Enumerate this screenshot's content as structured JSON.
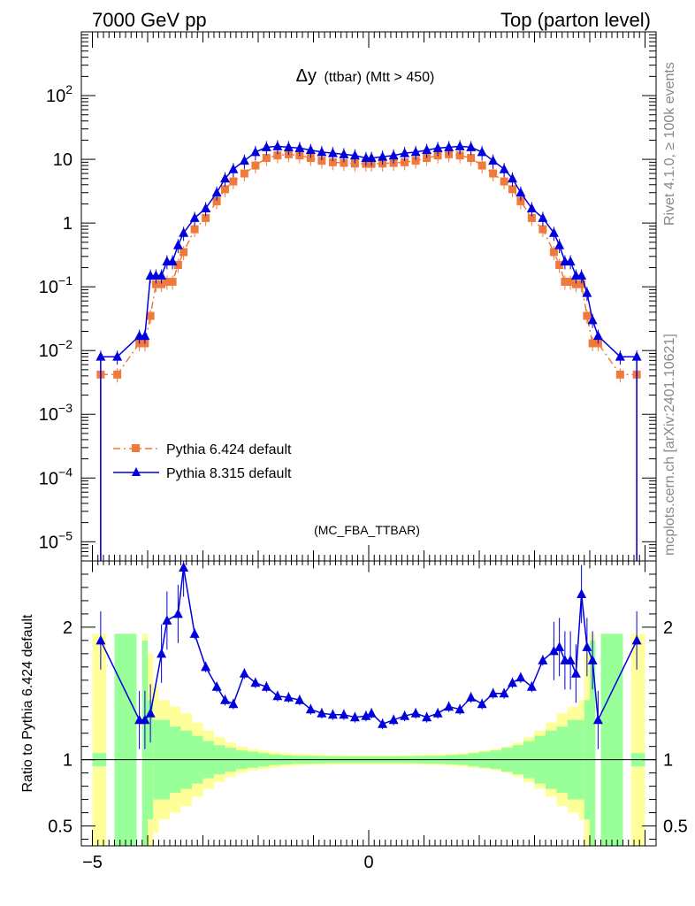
{
  "header": {
    "left": "7000 GeV pp",
    "right": "Top (parton level)"
  },
  "side_text": {
    "top": "Rivet 4.1.0, ≥ 100k events",
    "bottom": "mcplots.cern.ch [arXiv:2401.10621]"
  },
  "colors": {
    "p6": "#f07a3c",
    "p8": "#0000dd",
    "band_green": "#99ff99",
    "band_yellow": "#ffff99"
  },
  "chart_data": [
    {
      "type": "line",
      "title": "Δy (ttbar) (Mtt > 450)",
      "title_main": "Δy",
      "title_rest": "(ttbar) (Mtt > 450)",
      "analysis": "(MC_FBA_TTBAR)",
      "yscale": "log",
      "xlim": [
        -5.2,
        5.2
      ],
      "ylim": [
        5e-06,
        1000
      ],
      "yticks": [
        {
          "label": "10",
          "sup": "2",
          "value": 100
        },
        {
          "label": "10",
          "sup": "",
          "value": 10
        },
        {
          "label": "1",
          "sup": "",
          "value": 1
        },
        {
          "label": "10",
          "sup": "−1",
          "value": 0.1
        },
        {
          "label": "10",
          "sup": "−2",
          "value": 0.01
        },
        {
          "label": "10",
          "sup": "−3",
          "value": 0.001
        },
        {
          "label": "10",
          "sup": "−4",
          "value": 0.0001
        },
        {
          "label": "10",
          "sup": "−5",
          "value": 1e-05
        }
      ],
      "x": [
        -4.85,
        -4.55,
        -4.15,
        -4.05,
        -3.95,
        -3.85,
        -3.75,
        -3.65,
        -3.55,
        -3.45,
        -3.35,
        -3.15,
        -2.95,
        -2.75,
        -2.6,
        -2.45,
        -2.25,
        -2.05,
        -1.85,
        -1.65,
        -1.45,
        -1.25,
        -1.05,
        -0.85,
        -0.65,
        -0.45,
        -0.25,
        -0.05,
        0.05,
        0.25,
        0.45,
        0.65,
        0.85,
        1.05,
        1.25,
        1.45,
        1.65,
        1.85,
        2.05,
        2.25,
        2.45,
        2.6,
        2.75,
        2.95,
        3.15,
        3.35,
        3.45,
        3.55,
        3.65,
        3.75,
        3.85,
        3.95,
        4.05,
        4.15,
        4.55,
        4.85
      ],
      "series": [
        {
          "name": "Pythia 6.424 default",
          "color": "#f07a3c",
          "marker": "square",
          "dashed": true,
          "values": [
            0.0042,
            0.0042,
            0.013,
            0.013,
            0.035,
            0.11,
            0.11,
            0.12,
            0.12,
            0.22,
            0.35,
            0.8,
            1.2,
            2.2,
            3.4,
            4.5,
            6,
            8,
            10.5,
            11.5,
            12,
            11.5,
            10.5,
            9.5,
            9,
            8.8,
            8.6,
            8.5,
            8.5,
            8.6,
            8.8,
            9,
            9.5,
            10.5,
            11.5,
            12,
            11.5,
            10.5,
            8,
            6,
            4.5,
            3.4,
            2.2,
            1.2,
            0.8,
            0.35,
            0.22,
            0.12,
            0.12,
            0.11,
            0.11,
            0.035,
            0.013,
            0.013,
            0.0042,
            0.0042
          ]
        },
        {
          "name": "Pythia 8.315 default",
          "color": "#0000dd",
          "marker": "triangle",
          "dashed": false,
          "values": [
            0.008,
            0.008,
            0.017,
            0.017,
            0.15,
            0.15,
            0.15,
            0.25,
            0.25,
            0.45,
            0.7,
            1.2,
            1.7,
            3,
            5,
            7,
            9.5,
            13,
            15.5,
            16,
            15.5,
            15,
            14,
            13,
            12.5,
            12,
            11.5,
            10.5,
            10.5,
            11,
            11.5,
            12.5,
            13,
            14,
            15,
            15.5,
            16,
            15.5,
            13,
            9.5,
            7,
            5,
            3,
            1.7,
            1.2,
            0.7,
            0.45,
            0.25,
            0.25,
            0.15,
            0.15,
            0.08,
            0.03,
            0.017,
            0.008,
            0.008
          ]
        }
      ]
    },
    {
      "type": "line",
      "ylabel": "Ratio to Pythia 6.424 default",
      "xlim": [
        -5.2,
        5.2
      ],
      "ylim": [
        0.35,
        2.5
      ],
      "xticks": [
        {
          "label": "−5",
          "value": -5
        },
        {
          "label": "0",
          "value": 0
        }
      ],
      "yticks": [
        {
          "label": "2",
          "value": 2
        },
        {
          "label": "1",
          "value": 1
        },
        {
          "label": "0.5",
          "value": 0.5
        }
      ],
      "x": [
        -4.85,
        -4.15,
        -4.05,
        -3.95,
        -3.75,
        -3.65,
        -3.45,
        -3.35,
        -3.15,
        -2.95,
        -2.75,
        -2.6,
        -2.45,
        -2.25,
        -2.05,
        -1.85,
        -1.65,
        -1.45,
        -1.25,
        -1.05,
        -0.85,
        -0.65,
        -0.45,
        -0.25,
        -0.05,
        0.05,
        0.25,
        0.45,
        0.65,
        0.85,
        1.05,
        1.25,
        1.45,
        1.65,
        1.85,
        2.05,
        2.25,
        2.45,
        2.6,
        2.75,
        2.95,
        3.15,
        3.35,
        3.45,
        3.55,
        3.65,
        3.75,
        3.85,
        3.95,
        4.05,
        4.15,
        4.85
      ],
      "values": [
        1.9,
        1.3,
        1.3,
        1.35,
        1.8,
        2.05,
        2.1,
        2.45,
        1.95,
        1.7,
        1.55,
        1.45,
        1.42,
        1.65,
        1.58,
        1.55,
        1.48,
        1.47,
        1.45,
        1.38,
        1.35,
        1.34,
        1.34,
        1.32,
        1.33,
        1.35,
        1.27,
        1.3,
        1.33,
        1.35,
        1.32,
        1.35,
        1.4,
        1.38,
        1.47,
        1.42,
        1.5,
        1.5,
        1.58,
        1.62,
        1.55,
        1.75,
        1.82,
        1.85,
        1.75,
        1.75,
        1.65,
        2.25,
        1.85,
        1.75,
        1.3,
        1.9
      ],
      "band_x": [
        -5.0,
        -4.95,
        -4.75,
        -4.6,
        -4.4,
        -4.2,
        -4.1,
        -4.0,
        -3.9,
        -3.8,
        -3.6,
        -3.4,
        -3.2,
        -3.0,
        -2.8,
        -2.6,
        -2.4,
        -2.2,
        -2.0,
        -1.8,
        -1.6,
        -1.4,
        -1.2,
        -1.0,
        -0.8,
        -0.6,
        -0.4,
        -0.2,
        0.0,
        0.2,
        0.4,
        0.6,
        0.8,
        1.0,
        1.2,
        1.4,
        1.6,
        1.8,
        2.0,
        2.2,
        2.4,
        2.6,
        2.8,
        3.0,
        3.2,
        3.4,
        3.6,
        3.8,
        3.9,
        4.0,
        4.1,
        4.2,
        4.4,
        4.6,
        4.75,
        4.95,
        5.0
      ],
      "band_green": [
        0.05,
        0.05,
        0.0,
        0.95,
        0.95,
        0.0,
        0.9,
        0.45,
        0.3,
        0.3,
        0.25,
        0.22,
        0.18,
        0.14,
        0.11,
        0.09,
        0.07,
        0.06,
        0.05,
        0.04,
        0.035,
        0.03,
        0.03,
        0.028,
        0.026,
        0.025,
        0.025,
        0.025,
        0.025,
        0.025,
        0.025,
        0.026,
        0.028,
        0.03,
        0.03,
        0.035,
        0.04,
        0.05,
        0.06,
        0.07,
        0.09,
        0.11,
        0.14,
        0.18,
        0.22,
        0.25,
        0.3,
        0.3,
        0.45,
        0.9,
        0.0,
        0.95,
        0.95,
        0.0,
        0.05,
        0.05,
        0.05
      ],
      "band_yellow": [
        0.95,
        0.95,
        0.0,
        0.95,
        0.95,
        0.0,
        0.95,
        0.8,
        0.55,
        0.45,
        0.4,
        0.35,
        0.28,
        0.22,
        0.17,
        0.13,
        0.1,
        0.08,
        0.07,
        0.06,
        0.05,
        0.045,
        0.04,
        0.04,
        0.038,
        0.036,
        0.035,
        0.035,
        0.035,
        0.035,
        0.035,
        0.036,
        0.038,
        0.04,
        0.04,
        0.045,
        0.05,
        0.06,
        0.07,
        0.08,
        0.1,
        0.13,
        0.17,
        0.22,
        0.28,
        0.35,
        0.4,
        0.45,
        0.8,
        0.95,
        0.0,
        0.95,
        0.95,
        0.0,
        0.95,
        0.95,
        0.95
      ]
    }
  ]
}
